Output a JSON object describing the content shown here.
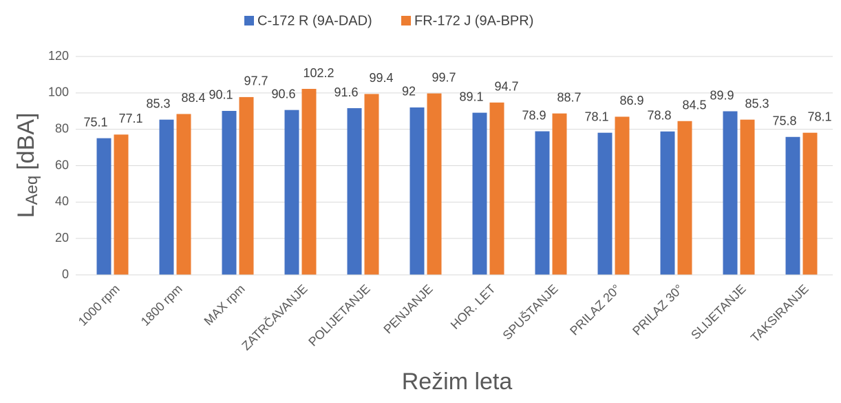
{
  "chart_data": {
    "type": "bar",
    "x_label": "Režim leta",
    "y_label": {
      "main": "L",
      "subscript": "Aeq",
      "suffix": "[dBA]"
    },
    "categories": [
      "1000 rpm",
      "1800 rpm",
      "MAX rpm",
      "ZATRČAVANJE",
      "POLIJETANJE",
      "PENJANJE",
      "HOR. LET",
      "SPUŠTANJE",
      "PRILAZ 20°",
      "PRILAZ 30°",
      "SLIJETANJE",
      "TAKSIRANJE"
    ],
    "series": [
      {
        "name": "C-172 R (9A-DAD)",
        "color": "#4472c4",
        "values": [
          75.1,
          85.3,
          90.1,
          90.6,
          91.6,
          92,
          89.1,
          78.9,
          78.1,
          78.8,
          89.9,
          75.8
        ]
      },
      {
        "name": "FR-172 J (9A-BPR)",
        "color": "#ed7d31",
        "values": [
          77.1,
          88.4,
          97.7,
          102.2,
          99.4,
          99.7,
          94.7,
          88.7,
          86.9,
          84.5,
          85.3,
          78.1
        ]
      }
    ],
    "ylim": [
      0,
      120
    ],
    "yticks": [
      0,
      20,
      40,
      60,
      80,
      100,
      120
    ],
    "grid": true,
    "legend": "top"
  }
}
